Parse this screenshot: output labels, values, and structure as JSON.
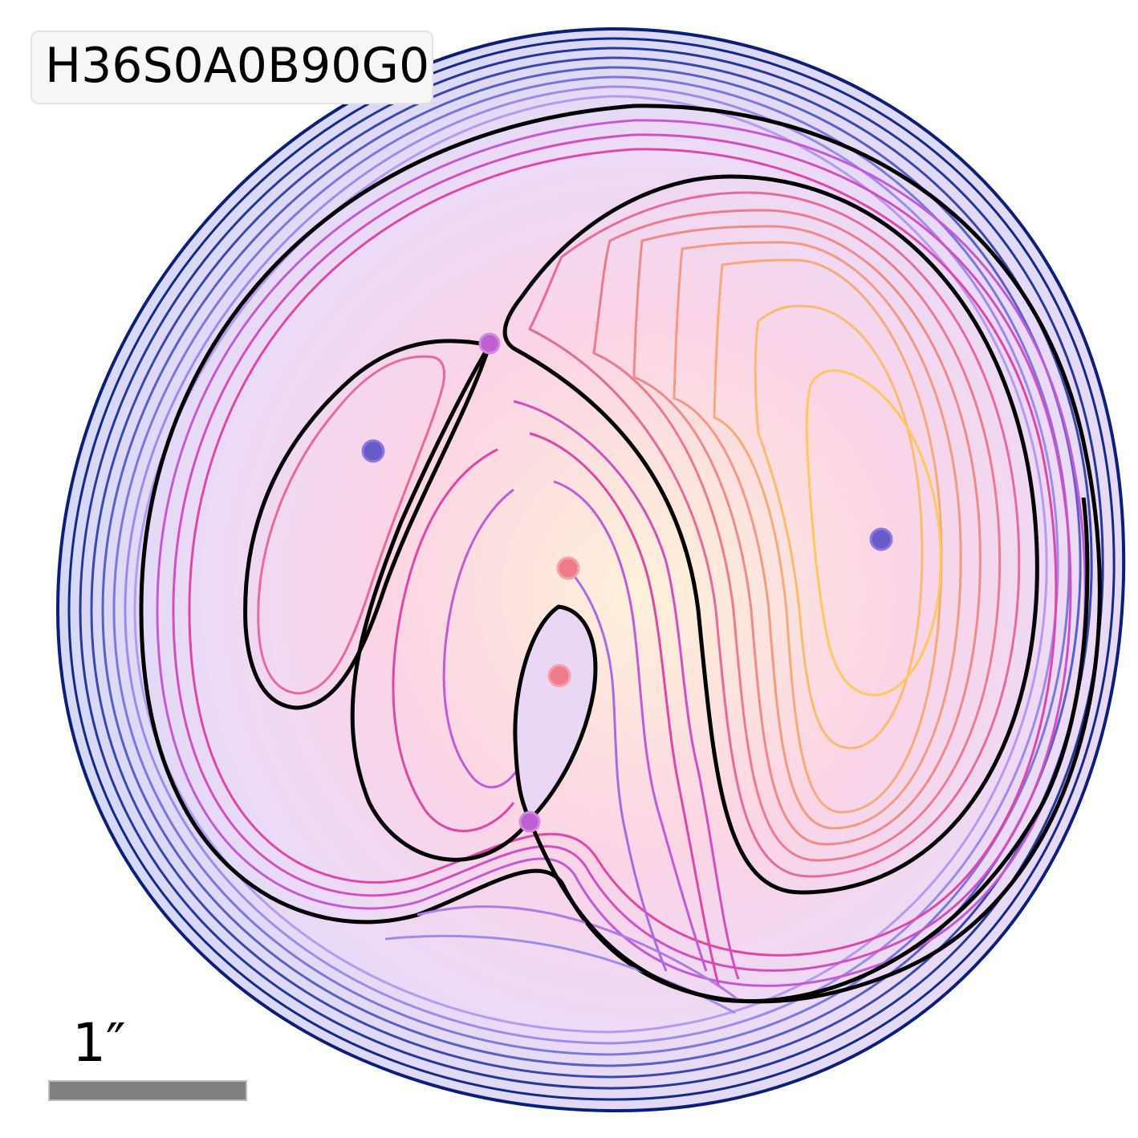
{
  "model_label": "H36S0A0B90G0",
  "scale_label": "1″",
  "colors": {
    "outer_contours": "#0b1f7a",
    "mid_contours": "#9b7cf0",
    "inner_contours": "#e046a6",
    "core_contours": "#f8a37e",
    "peak_contours": "#ffc75c",
    "critical_curves": "#000000",
    "image_markers": "#6a5ac8",
    "saddle_markers": "#c060d0",
    "source_markers": "#ef7a8a",
    "scale_bar": "#7f7f7f"
  }
}
